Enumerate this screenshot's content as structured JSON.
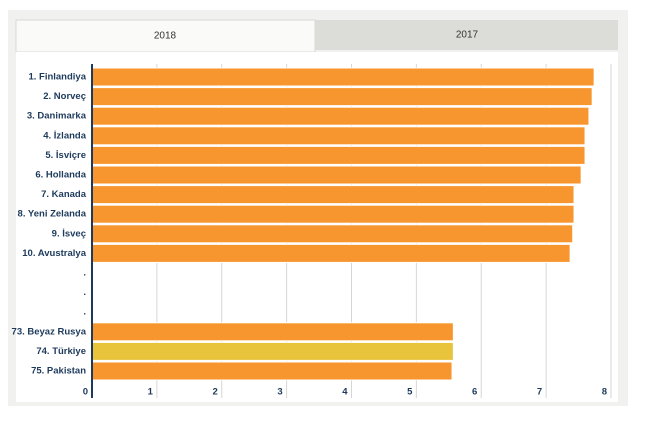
{
  "tabs": [
    "2018",
    "2017"
  ],
  "chart_data": {
    "type": "hbar",
    "categories": [
      "1. Finlandiya",
      "2. Norveç",
      "3. Danimarka",
      "4. İzlanda",
      "5. İsviçre",
      "6. Hollanda",
      "7. Kanada",
      "8. Yeni Zelanda",
      "9. İsveç",
      "10. Avustralya",
      ".",
      ".",
      ".",
      "73. Beyaz Rusya",
      "74. Türkiye",
      "75. Pakistan"
    ],
    "values": [
      7.74,
      7.71,
      7.66,
      7.6,
      7.6,
      7.54,
      7.43,
      7.43,
      7.41,
      7.37,
      null,
      null,
      null,
      5.57,
      5.57,
      5.55
    ],
    "colors": [
      "#f7962e",
      "#f7962e",
      "#f7962e",
      "#f7962e",
      "#f7962e",
      "#f7962e",
      "#f7962e",
      "#f7962e",
      "#f7962e",
      "#f7962e",
      null,
      null,
      null,
      "#f7962e",
      "#e8c43c",
      "#f7962e"
    ],
    "xlim": [
      0,
      8
    ],
    "xticks": [
      0,
      1,
      2,
      3,
      4,
      5,
      6,
      7,
      8
    ],
    "grid": true
  }
}
